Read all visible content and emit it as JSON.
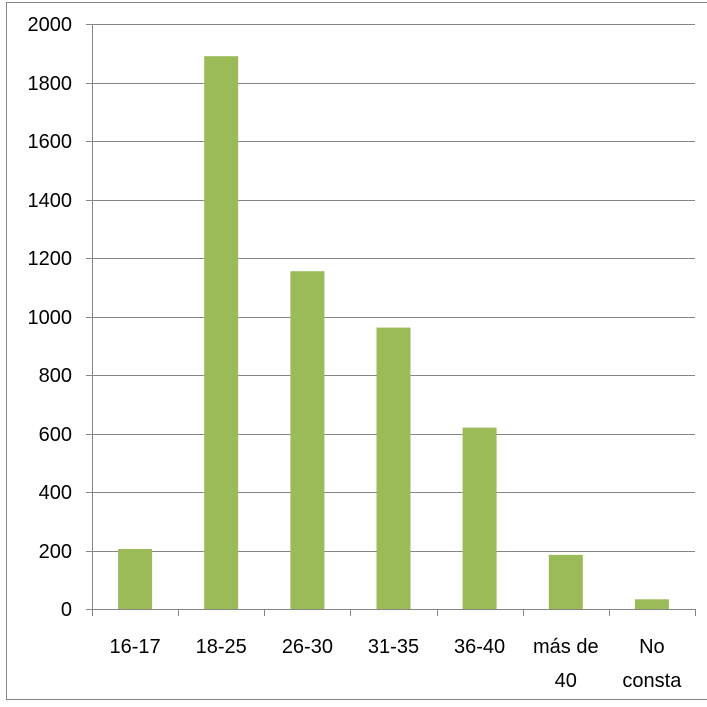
{
  "chart_data": {
    "type": "bar",
    "title": "",
    "xlabel": "",
    "ylabel": "",
    "categories": [
      [
        "16-17"
      ],
      [
        "18-25"
      ],
      [
        "26-30"
      ],
      [
        "31-35"
      ],
      [
        "36-40"
      ],
      [
        "más de",
        "40"
      ],
      [
        "No",
        "consta"
      ]
    ],
    "values": [
      205,
      1890,
      1155,
      962,
      620,
      185,
      33
    ],
    "ylim": [
      0,
      2000
    ],
    "yticks": [
      0,
      200,
      400,
      600,
      800,
      1000,
      1200,
      1400,
      1600,
      1800,
      2000
    ],
    "grid": true,
    "legend": false,
    "colors": {
      "bar": "#9BBB59",
      "grid": "#868686",
      "axis": "#868686",
      "border": "#868686"
    }
  }
}
